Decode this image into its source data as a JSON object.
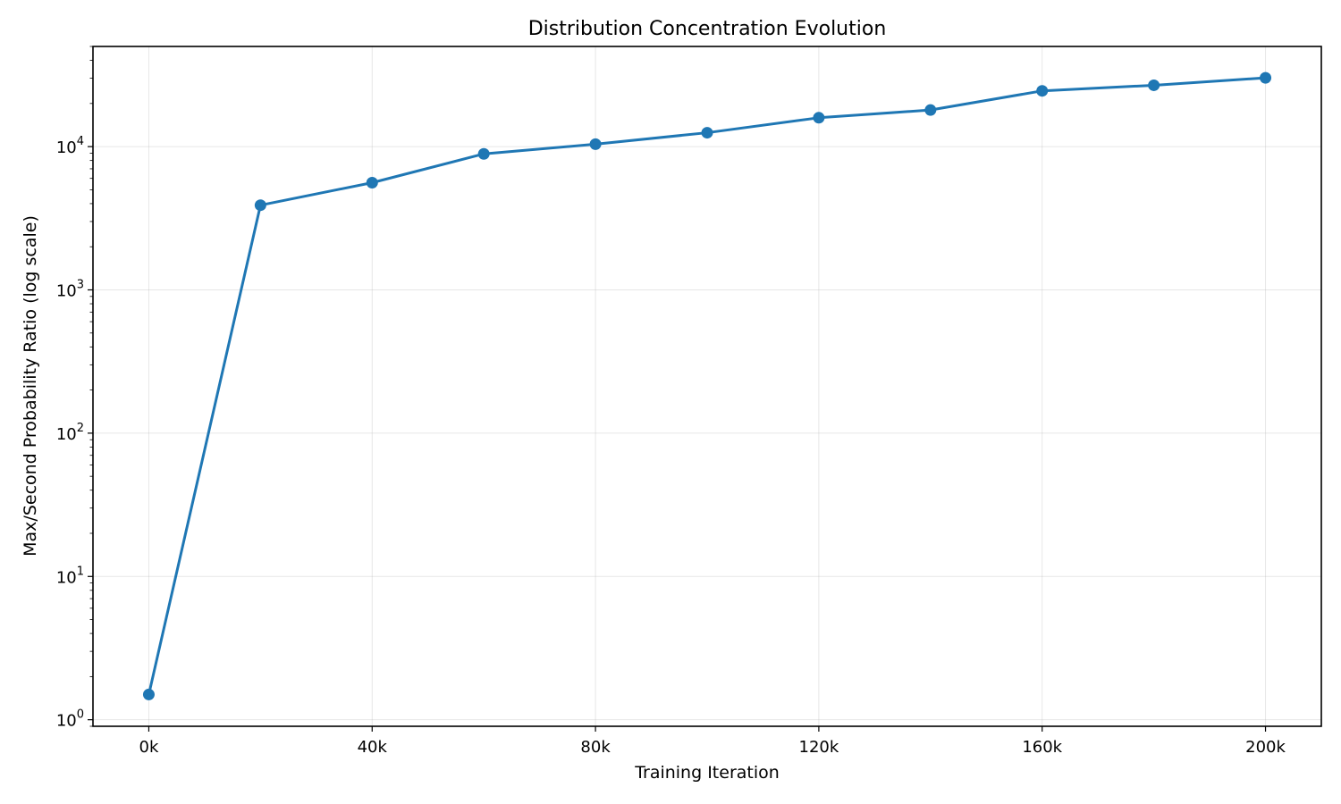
{
  "chart_data": {
    "type": "line",
    "title": "Distribution Concentration Evolution",
    "xlabel": "Training Iteration",
    "ylabel": "Max/Second Probability Ratio (log scale)",
    "y_scale": "log",
    "grid": true,
    "xlim": [
      -10000,
      210000
    ],
    "ylim": [
      0.9,
      50000
    ],
    "x_ticks": [
      {
        "value": 0,
        "label": "0k"
      },
      {
        "value": 40000,
        "label": "40k"
      },
      {
        "value": 80000,
        "label": "80k"
      },
      {
        "value": 120000,
        "label": "120k"
      },
      {
        "value": 160000,
        "label": "160k"
      },
      {
        "value": 200000,
        "label": "200k"
      }
    ],
    "y_ticks": [
      {
        "value": 1,
        "base": "10",
        "exp": "0"
      },
      {
        "value": 10,
        "base": "10",
        "exp": "1"
      },
      {
        "value": 100,
        "base": "10",
        "exp": "2"
      },
      {
        "value": 1000,
        "base": "10",
        "exp": "3"
      },
      {
        "value": 10000,
        "base": "10",
        "exp": "4"
      }
    ],
    "series": [
      {
        "color": "#1f77b4",
        "marker": "circle",
        "x": [
          0,
          20000,
          40000,
          60000,
          80000,
          100000,
          120000,
          140000,
          160000,
          180000,
          200000
        ],
        "y": [
          1.5,
          3900,
          5600,
          8900,
          10400,
          12500,
          15900,
          18000,
          24500,
          26800,
          30200
        ]
      }
    ]
  }
}
